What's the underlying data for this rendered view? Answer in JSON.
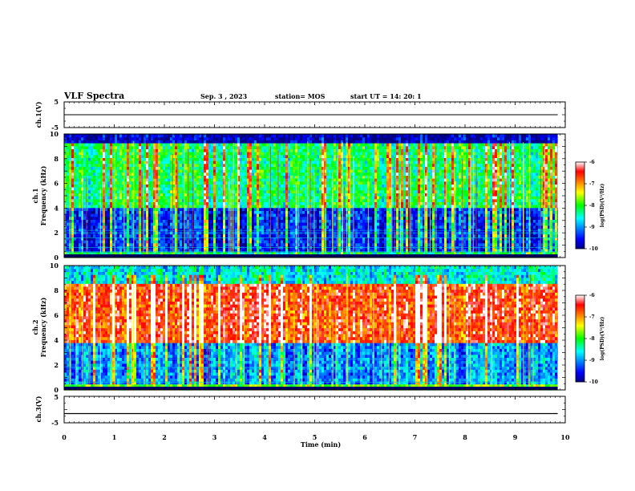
{
  "header": {
    "title": "VLF Spectra",
    "date": "Sep. 3 , 2023",
    "station": "station= MOS",
    "start": "start  UT =   14: 20: 1"
  },
  "chart_data": [
    {
      "type": "line",
      "id": "ch1-voltage",
      "ylabel": "ch.1(V)",
      "ylim": [
        -5,
        5
      ],
      "y_ticklabels": [
        "5",
        "-5"
      ],
      "xlim": [
        0,
        10
      ],
      "series": [
        {
          "x": [
            0,
            9.85
          ],
          "values": [
            0,
            0
          ]
        }
      ],
      "colors": {
        "line": "#000000"
      }
    },
    {
      "type": "heatmap",
      "id": "ch1-spectrogram",
      "ylabel": "ch.1\nFrequency (kHz)",
      "ylim": [
        0,
        10
      ],
      "y_ticks": [
        0,
        2,
        4,
        6,
        8,
        10
      ],
      "xlim": [
        0,
        10
      ],
      "data_end_min": 9.85,
      "colorbar": {
        "label": "log(PSD)(V²/Hz)",
        "range": [
          -10,
          -6
        ],
        "ticks": [
          "-6",
          "-7",
          "-8",
          "-9",
          "-10"
        ]
      },
      "mean_log_psd_by_band": [
        {
          "band_khz": [
            0,
            0.5
          ],
          "value": -8.2
        },
        {
          "band_khz": [
            0.5,
            4.0
          ],
          "value": -9.4
        },
        {
          "band_khz": [
            4.0,
            9.3
          ],
          "value": -8.2
        },
        {
          "band_khz": [
            9.3,
            10
          ],
          "value": -9.8
        }
      ]
    },
    {
      "type": "heatmap",
      "id": "ch2-spectrogram",
      "ylabel": "ch.2\nFrequency (kHz)",
      "ylim": [
        0,
        10
      ],
      "y_ticks": [
        0,
        2,
        4,
        6,
        8,
        10
      ],
      "xlim": [
        0,
        10
      ],
      "data_end_min": 9.85,
      "colorbar": {
        "label": "log(PSD)(V²/Hz)",
        "range": [
          -10,
          -6
        ],
        "ticks": [
          "-6",
          "-7",
          "-8",
          "-9",
          "-10"
        ]
      },
      "mean_log_psd_by_band": [
        {
          "band_khz": [
            0,
            0.5
          ],
          "value": -7.8
        },
        {
          "band_khz": [
            0.5,
            3.8
          ],
          "value": -9.0
        },
        {
          "band_khz": [
            3.8,
            8.5
          ],
          "value": -6.6
        },
        {
          "band_khz": [
            8.5,
            10
          ],
          "value": -8.6
        }
      ]
    },
    {
      "type": "line",
      "id": "ch3-voltage",
      "ylabel": "ch.3(V)",
      "ylim": [
        -5,
        5
      ],
      "y_ticklabels": [
        "5",
        "-5"
      ],
      "xlim": [
        0,
        10
      ],
      "x_ticks": [
        0,
        1,
        2,
        3,
        4,
        5,
        6,
        7,
        8,
        9,
        10
      ],
      "xlabel": "Time  (min)",
      "series": [
        {
          "x": [
            0,
            9.85
          ],
          "values": [
            -1.5,
            -1.5
          ]
        }
      ],
      "colors": {
        "line": "#000000"
      }
    }
  ]
}
